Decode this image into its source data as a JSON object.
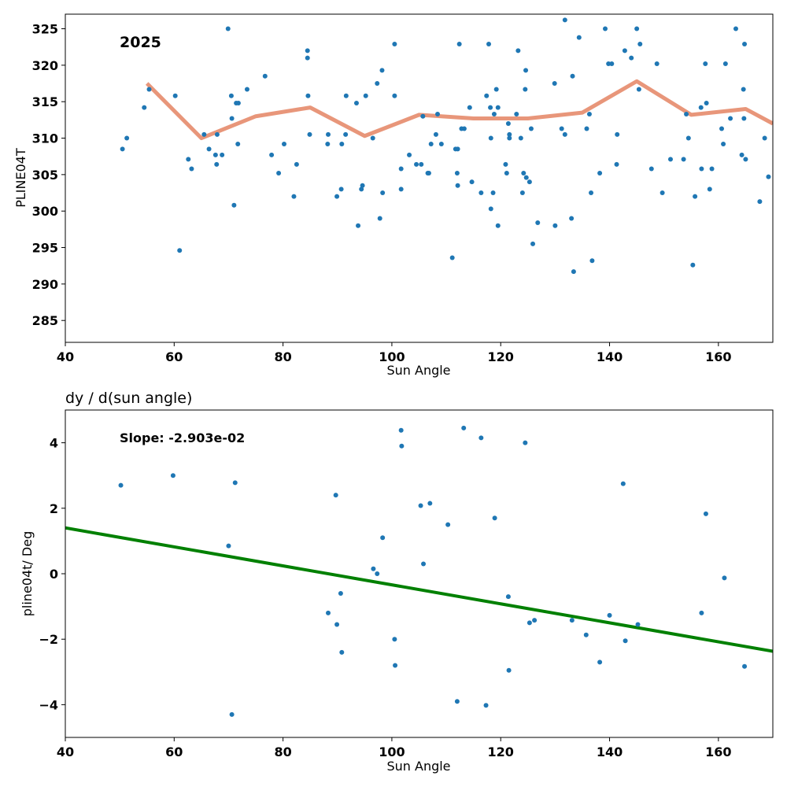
{
  "chart_data": [
    {
      "type": "scatter",
      "title": "",
      "annotation": "2025",
      "xlabel": "Sun Angle",
      "ylabel": "PLINE04T",
      "xlim": [
        40,
        170
      ],
      "ylim": [
        282,
        327
      ],
      "xticks": [
        40,
        60,
        80,
        100,
        120,
        140,
        160
      ],
      "yticks": [
        285,
        290,
        295,
        300,
        305,
        310,
        315,
        320,
        325
      ],
      "grid": false,
      "colors": {
        "points": "#1f77b4",
        "line": "#e8967a"
      },
      "series": [
        {
          "type": "scatter",
          "points": [
            [
              50.5,
              308.5
            ],
            [
              51.3,
              310
            ],
            [
              54.5,
              314.2
            ],
            [
              55.4,
              316.7
            ],
            [
              60.2,
              315.8
            ],
            [
              61,
              294.6
            ],
            [
              62.6,
              307.1
            ],
            [
              63.2,
              305.8
            ],
            [
              65.5,
              310.5
            ],
            [
              66.4,
              308.5
            ],
            [
              67.6,
              307.7
            ],
            [
              67.8,
              306.4
            ],
            [
              67.9,
              310.5
            ],
            [
              68.8,
              307.7
            ],
            [
              69.9,
              325
            ],
            [
              70.5,
              315.8
            ],
            [
              70.6,
              312.7
            ],
            [
              71,
              300.8
            ],
            [
              71.4,
              314.8
            ],
            [
              71.7,
              309.2
            ],
            [
              71.8,
              314.8
            ],
            [
              73.4,
              316.7
            ],
            [
              76.7,
              318.5
            ],
            [
              77.9,
              307.7
            ],
            [
              79.2,
              305.2
            ],
            [
              80.2,
              309.2
            ],
            [
              82,
              302
            ],
            [
              82.5,
              306.4
            ],
            [
              84.5,
              322
            ],
            [
              84.5,
              321
            ],
            [
              84.6,
              315.8
            ],
            [
              84.9,
              310.5
            ],
            [
              88.2,
              309.2
            ],
            [
              88.3,
              310.5
            ],
            [
              89.9,
              302
            ],
            [
              90.7,
              303
            ],
            [
              90.8,
              309.2
            ],
            [
              91.5,
              310.5
            ],
            [
              91.6,
              315.8
            ],
            [
              93.5,
              314.8
            ],
            [
              93.8,
              298
            ],
            [
              94.4,
              303
            ],
            [
              94.6,
              303.5
            ],
            [
              95.2,
              315.8
            ],
            [
              96.5,
              310
            ],
            [
              97.3,
              317.5
            ],
            [
              97.8,
              299
            ],
            [
              98.2,
              319.3
            ],
            [
              98.3,
              302.5
            ],
            [
              100.5,
              322.9
            ],
            [
              100.5,
              315.8
            ],
            [
              101.7,
              303
            ],
            [
              101.7,
              305.8
            ],
            [
              103.2,
              307.7
            ],
            [
              104.5,
              306.4
            ],
            [
              105.4,
              306.4
            ],
            [
              105.7,
              313
            ],
            [
              106.6,
              305.2
            ],
            [
              106.8,
              305.2
            ],
            [
              107.2,
              309.2
            ],
            [
              108.1,
              310.5
            ],
            [
              108.4,
              313.3
            ],
            [
              109.1,
              309.2
            ],
            [
              111.1,
              293.6
            ],
            [
              111.7,
              308.5
            ],
            [
              112,
              305.2
            ],
            [
              112.1,
              308.5
            ],
            [
              112.1,
              303.5
            ],
            [
              112.4,
              322.9
            ],
            [
              112.8,
              311.3
            ],
            [
              113.3,
              311.3
            ],
            [
              114.3,
              314.2
            ],
            [
              114.7,
              304
            ],
            [
              116.4,
              302.5
            ],
            [
              117.4,
              315.8
            ],
            [
              117.8,
              322.9
            ],
            [
              118.1,
              314.2
            ],
            [
              118.2,
              310
            ],
            [
              118.2,
              300.3
            ],
            [
              118.6,
              302.5
            ],
            [
              118.8,
              313.3
            ],
            [
              119.2,
              316.7
            ],
            [
              119.5,
              298
            ],
            [
              119.5,
              314.2
            ],
            [
              120.9,
              306.4
            ],
            [
              121.1,
              305.2
            ],
            [
              121.4,
              312
            ],
            [
              121.6,
              310.5
            ],
            [
              121.6,
              310
            ],
            [
              122.9,
              313.3
            ],
            [
              123.2,
              322
            ],
            [
              123.7,
              310
            ],
            [
              124,
              302.5
            ],
            [
              124.2,
              305.2
            ],
            [
              124.5,
              316.7
            ],
            [
              124.6,
              319.3
            ],
            [
              124.7,
              304.6
            ],
            [
              125.3,
              304
            ],
            [
              125.6,
              311.3
            ],
            [
              125.9,
              295.5
            ],
            [
              126.8,
              298.4
            ],
            [
              129.9,
              317.5
            ],
            [
              130,
              298
            ],
            [
              131.2,
              311.3
            ],
            [
              131.8,
              310.5
            ],
            [
              131.8,
              326.2
            ],
            [
              133,
              299
            ],
            [
              133.2,
              318.5
            ],
            [
              133.4,
              291.7
            ],
            [
              134.4,
              323.8
            ],
            [
              135.8,
              311.3
            ],
            [
              136.3,
              313.3
            ],
            [
              136.6,
              302.5
            ],
            [
              136.8,
              293.2
            ],
            [
              138.2,
              305.2
            ],
            [
              139.2,
              325
            ],
            [
              139.8,
              320.2
            ],
            [
              140.4,
              320.2
            ],
            [
              141.3,
              306.4
            ],
            [
              141.4,
              310.5
            ],
            [
              142.8,
              322
            ],
            [
              144,
              321
            ],
            [
              145,
              325
            ],
            [
              145.4,
              316.7
            ],
            [
              145.6,
              322.9
            ],
            [
              147.7,
              305.8
            ],
            [
              148.7,
              320.2
            ],
            [
              149.7,
              302.5
            ],
            [
              151.2,
              307.1
            ],
            [
              153.6,
              307.1
            ],
            [
              154.1,
              313.3
            ],
            [
              154.5,
              310
            ],
            [
              155.3,
              292.6
            ],
            [
              155.7,
              302
            ],
            [
              156.8,
              314.2
            ],
            [
              156.9,
              305.8
            ],
            [
              157.6,
              320.2
            ],
            [
              157.8,
              314.8
            ],
            [
              158.4,
              303
            ],
            [
              158.8,
              305.8
            ],
            [
              160.6,
              311.3
            ],
            [
              160.9,
              309.2
            ],
            [
              161.3,
              320.2
            ],
            [
              162.2,
              312.7
            ],
            [
              163.2,
              325
            ],
            [
              164.3,
              307.7
            ],
            [
              164.6,
              316.7
            ],
            [
              164.7,
              312.7
            ],
            [
              164.8,
              322.9
            ],
            [
              165,
              307.1
            ],
            [
              167.6,
              301.3
            ],
            [
              168.5,
              310
            ],
            [
              169.2,
              304.7
            ]
          ]
        },
        {
          "type": "line",
          "points": [
            [
              55,
              317.5
            ],
            [
              65,
              310
            ],
            [
              75,
              313
            ],
            [
              85,
              314.2
            ],
            [
              95,
              310.3
            ],
            [
              105,
              313.2
            ],
            [
              115,
              312.7
            ],
            [
              125,
              312.7
            ],
            [
              135,
              313.5
            ],
            [
              145,
              317.8
            ],
            [
              155,
              313.2
            ],
            [
              165,
              314
            ],
            [
              170,
              312
            ]
          ]
        }
      ]
    },
    {
      "type": "scatter",
      "title": "dy / d(sun angle)",
      "annotation": "Slope: -2.903e-02",
      "xlabel": "Sun Angle",
      "ylabel": "pline04t/ Deg",
      "xlim": [
        40,
        170
      ],
      "ylim": [
        -5,
        5
      ],
      "xticks": [
        40,
        60,
        80,
        100,
        120,
        140,
        160
      ],
      "yticks": [
        -4,
        -2,
        0,
        2,
        4
      ],
      "grid": false,
      "colors": {
        "points": "#1f77b4",
        "line": "#008000"
      },
      "series": [
        {
          "type": "scatter",
          "points": [
            [
              50.2,
              2.7
            ],
            [
              59.8,
              3
            ],
            [
              70,
              0.85
            ],
            [
              70.6,
              -4.3
            ],
            [
              71.2,
              2.78
            ],
            [
              88.3,
              -1.2
            ],
            [
              89.7,
              2.4
            ],
            [
              89.9,
              -1.55
            ],
            [
              90.6,
              -0.6
            ],
            [
              90.8,
              -2.4
            ],
            [
              96.6,
              0.15
            ],
            [
              97.3,
              0
            ],
            [
              98.3,
              1.1
            ],
            [
              100.5,
              -2
            ],
            [
              100.6,
              -2.8
            ],
            [
              101.7,
              4.38
            ],
            [
              101.8,
              3.9
            ],
            [
              105.3,
              2.08
            ],
            [
              105.8,
              0.3
            ],
            [
              107,
              2.15
            ],
            [
              110.3,
              1.5
            ],
            [
              112,
              -3.9
            ],
            [
              113.2,
              4.45
            ],
            [
              116.4,
              4.15
            ],
            [
              117.3,
              -4.02
            ],
            [
              118.9,
              1.7
            ],
            [
              121.4,
              -0.7
            ],
            [
              121.5,
              -2.95
            ],
            [
              124.5,
              4
            ],
            [
              125.3,
              -1.5
            ],
            [
              126.2,
              -1.42
            ],
            [
              133.1,
              -1.42
            ],
            [
              135.7,
              -1.87
            ],
            [
              138.2,
              -2.7
            ],
            [
              140,
              -1.27
            ],
            [
              142.5,
              2.75
            ],
            [
              142.9,
              -2.05
            ],
            [
              145.2,
              -1.55
            ],
            [
              156.9,
              -1.2
            ],
            [
              157.7,
              1.83
            ],
            [
              161.1,
              -0.13
            ],
            [
              164.8,
              -2.83
            ]
          ]
        },
        {
          "type": "line",
          "points": [
            [
              40,
              1.4
            ],
            [
              170,
              -2.37
            ]
          ]
        }
      ]
    }
  ]
}
